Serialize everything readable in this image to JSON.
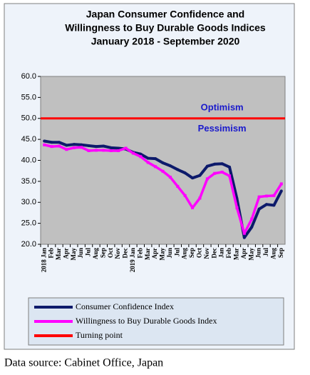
{
  "chart_data": {
    "type": "line",
    "title": [
      "Japan Consumer Confidence and",
      "Willingness to Buy Durable Goods Indices",
      "January 2018 - September 2020"
    ],
    "categories": [
      "2018 Jan",
      "Feb",
      "Mar",
      "Apr",
      "May",
      "Jun",
      "Jul",
      "Aug",
      "Sep",
      "Oct",
      "Nov",
      "Dec",
      "2019 Jan",
      "Feb",
      "Mar",
      "Apr",
      "May",
      "Jun",
      "Jul",
      "Aug",
      "Sep",
      "Oct",
      "Nov",
      "Dec",
      "Jan",
      "Feb",
      "Mar",
      "Apr",
      "May",
      "Jun",
      "Jul",
      "Aug",
      "Sep"
    ],
    "series": [
      {
        "name": "Consumer Confidence Index",
        "color": "#0d1a6b",
        "values": [
          44.6,
          44.3,
          44.3,
          43.6,
          43.8,
          43.7,
          43.5,
          43.3,
          43.4,
          43.0,
          42.9,
          42.7,
          41.9,
          41.5,
          40.5,
          40.4,
          39.4,
          38.7,
          37.8,
          37.0,
          35.8,
          36.4,
          38.6,
          39.1,
          39.2,
          38.4,
          30.9,
          21.6,
          24.1,
          28.4,
          29.5,
          29.3,
          32.7
        ]
      },
      {
        "name": "Willingness to Buy Durable Goods Index",
        "color": "#ff00ff",
        "values": [
          43.7,
          43.3,
          43.4,
          42.6,
          43.0,
          43.1,
          42.3,
          42.4,
          42.4,
          42.3,
          42.3,
          42.9,
          41.7,
          40.9,
          39.5,
          38.5,
          37.4,
          36.0,
          33.8,
          31.6,
          28.7,
          31.0,
          35.6,
          36.9,
          37.2,
          36.3,
          28.7,
          22.6,
          26.0,
          31.3,
          31.5,
          31.6,
          34.4
        ]
      }
    ],
    "reference_lines": [
      {
        "name": "Turning point",
        "value": 50,
        "color": "#ff0000"
      }
    ],
    "annotations": [
      {
        "text": "Optimism",
        "x": 24,
        "y": 52.5
      },
      {
        "text": "Pessimism",
        "x": 24,
        "y": 47.5
      }
    ],
    "ylim": [
      20,
      60
    ],
    "yticks": [
      {
        "value": 20,
        "label": "20.0"
      },
      {
        "value": 25,
        "label": "25.0"
      },
      {
        "value": 30,
        "label": "30.0"
      },
      {
        "value": 35,
        "label": "35.0"
      },
      {
        "value": 40,
        "label": "40.0"
      },
      {
        "value": 45,
        "label": "45.0"
      },
      {
        "value": 50,
        "label": "50.0"
      },
      {
        "value": 55,
        "label": "55.0"
      },
      {
        "value": 60,
        "label": "60.0"
      }
    ],
    "source": "Data source: Cabinet Office, Japan"
  }
}
